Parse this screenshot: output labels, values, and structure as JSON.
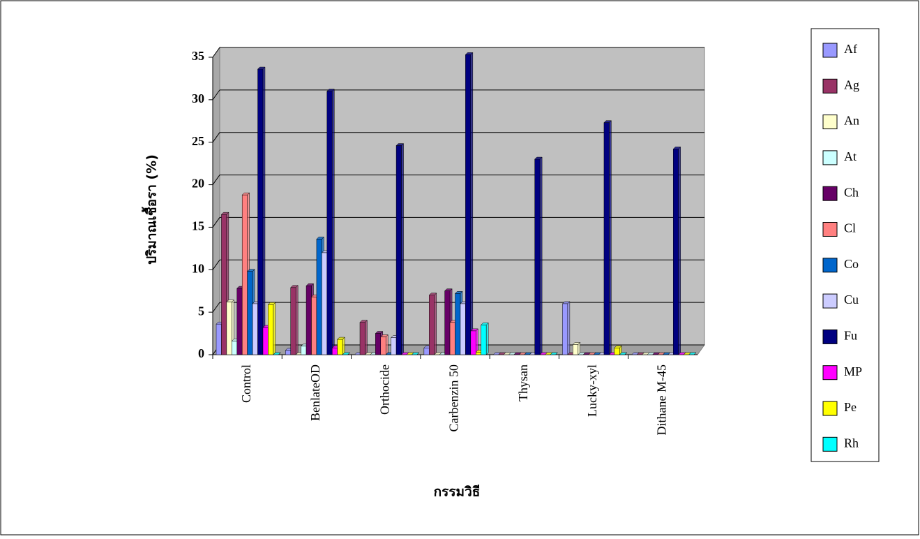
{
  "chart_data": {
    "type": "bar3d",
    "y_label": "ปริมาณเชื้อรา (%)",
    "x_label": "กรรมวิธี",
    "categories": [
      "Control",
      "BenlateOD",
      "Orthocide",
      "Carbenzin 50",
      "Thysan",
      "Lucky-xyl",
      "Dithane M-45"
    ],
    "series": [
      {
        "name": "Af",
        "color": "#9999ff",
        "values": [
          3.6,
          0.5,
          0,
          0.8,
          0,
          6,
          0
        ]
      },
      {
        "name": "Ag",
        "color": "#993366",
        "values": [
          16.5,
          7.9,
          3.8,
          7,
          0,
          0,
          0
        ]
      },
      {
        "name": "An",
        "color": "#ffffcc",
        "values": [
          6.2,
          0,
          0,
          0,
          0,
          1.2,
          0
        ]
      },
      {
        "name": "At",
        "color": "#ccffff",
        "values": [
          1.6,
          1,
          0,
          0,
          0,
          0,
          0
        ]
      },
      {
        "name": "Ch",
        "color": "#660066",
        "values": [
          7.8,
          8.1,
          2.5,
          7.5,
          0,
          0,
          0
        ]
      },
      {
        "name": "Cl",
        "color": "#ff8080",
        "values": [
          18.8,
          6.8,
          2.1,
          3.8,
          0,
          0,
          0
        ]
      },
      {
        "name": "Co",
        "color": "#0066cc",
        "values": [
          9.8,
          13.6,
          0,
          7.2,
          0,
          0,
          0
        ]
      },
      {
        "name": "Cu",
        "color": "#ccccff",
        "values": [
          6,
          12,
          2,
          6,
          0,
          0,
          0
        ]
      },
      {
        "name": "Fu",
        "color": "#000080",
        "values": [
          33.6,
          31,
          24.6,
          35.3,
          23,
          27.3,
          24.2
        ]
      },
      {
        "name": "MP",
        "color": "#ff00ff",
        "values": [
          3.2,
          0.8,
          0,
          2.8,
          0,
          0,
          0
        ]
      },
      {
        "name": "Pe",
        "color": "#ffff00",
        "values": [
          5.9,
          1.8,
          0,
          0.3,
          0,
          0.8,
          0
        ]
      },
      {
        "name": "Rh",
        "color": "#00ffff",
        "values": [
          0,
          0,
          0,
          3.5,
          0,
          0,
          0
        ]
      }
    ],
    "ylim": [
      0,
      35
    ],
    "yticks": [
      0,
      5,
      10,
      15,
      20,
      25,
      30,
      35
    ],
    "grid": true,
    "legend": "right"
  }
}
